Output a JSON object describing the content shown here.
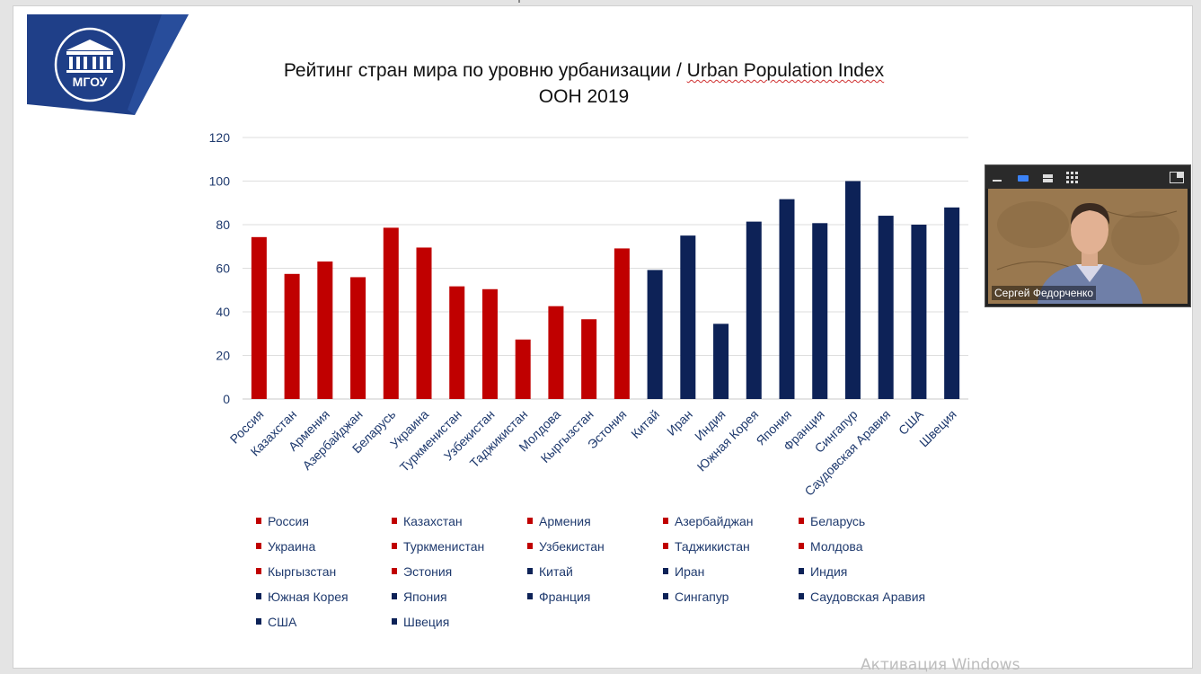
{
  "slide": {
    "logo_text": "МГОУ"
  },
  "chart_data": {
    "type": "bar",
    "title_line1_ru": "Рейтинг стран мира по уровню урбанизации / ",
    "title_line1_en": "Urban Population Index",
    "title_line2": "ООН 2019",
    "ylim": [
      0,
      120
    ],
    "yticks": [
      "0",
      "20",
      "40",
      "60",
      "80",
      "100",
      "120"
    ],
    "grid": true,
    "legend_position": "bottom",
    "categories": [
      "Россия",
      "Казахстан",
      "Армения",
      "Азербайджан",
      "Беларусь",
      "Украина",
      "Туркменистан",
      "Узбекистан",
      "Таджикистан",
      "Молдова",
      "Кыргызстан",
      "Эстония",
      "Китай",
      "Иран",
      "Индия",
      "Южная Корея",
      "Япония",
      "Франция",
      "Сингапур",
      "Саудовская Аравия",
      "США",
      "Швеция"
    ],
    "values": [
      74.3,
      57.4,
      63.1,
      55.9,
      78.6,
      69.5,
      51.7,
      50.4,
      27.3,
      42.6,
      36.6,
      69.1,
      59.2,
      75.0,
      34.5,
      81.4,
      91.7,
      80.7,
      100.0,
      84.1,
      80.0,
      87.9
    ],
    "colors": [
      "#c00000",
      "#c00000",
      "#c00000",
      "#c00000",
      "#c00000",
      "#c00000",
      "#c00000",
      "#c00000",
      "#c00000",
      "#c00000",
      "#c00000",
      "#c00000",
      "#0d2257",
      "#0d2257",
      "#0d2257",
      "#0d2257",
      "#0d2257",
      "#0d2257",
      "#0d2257",
      "#0d2257",
      "#0d2257",
      "#0d2257"
    ]
  },
  "colors": {
    "cis": "#c00000",
    "other": "#0d2257",
    "axis_text": "#1f3a6e"
  },
  "video": {
    "participant_name": "Сергей Федорченко"
  },
  "watermark": "Активация Windows"
}
